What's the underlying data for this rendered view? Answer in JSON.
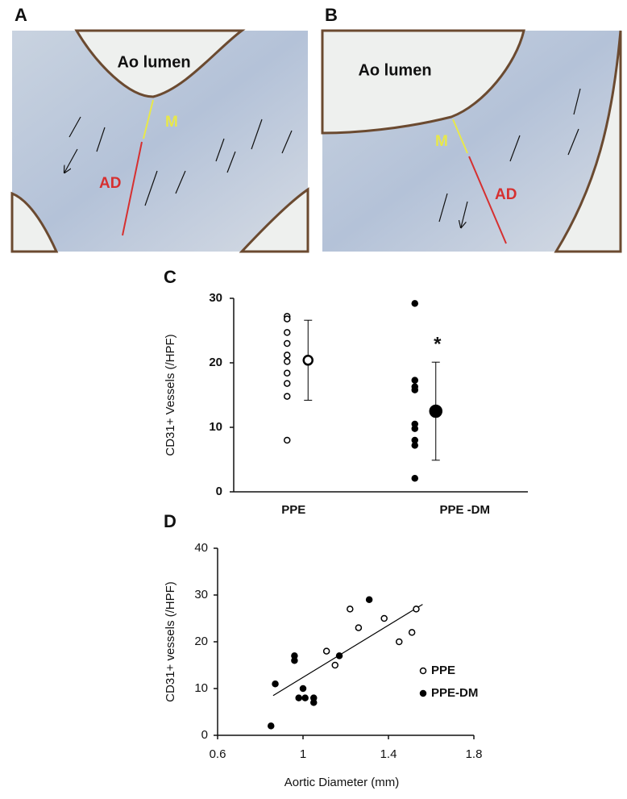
{
  "images": [
    {
      "label": "A",
      "texts": [
        "Ao lumen",
        "M",
        "AD"
      ]
    },
    {
      "label": "B",
      "texts": [
        "Ao lumen",
        "M",
        "AD"
      ]
    }
  ],
  "chart_data": [
    {
      "type": "dot",
      "label": "C",
      "ylabel": "CD31+ Vessels (/HPF)",
      "categories": [
        "PPE",
        "PPE  -DM"
      ],
      "groups": [
        {
          "values": [
            27.2,
            26.8,
            24.7,
            23.0,
            21.2,
            20.2,
            18.4,
            16.8,
            14.8,
            8.0
          ],
          "mean": 20.4,
          "error": 6.2,
          "filled": false
        },
        {
          "values": [
            29.2,
            17.3,
            16.3,
            15.8,
            10.5,
            9.8,
            8.0,
            7.2,
            2.1
          ],
          "mean": 12.5,
          "error": 7.6,
          "filled": true
        }
      ],
      "annotation": "*",
      "ylim": [
        0,
        30
      ],
      "yticks": [
        0,
        10,
        20,
        30
      ],
      "color": "#000000"
    },
    {
      "type": "scatter",
      "label": "D",
      "xlabel": "Aortic Diameter (mm)",
      "ylabel": "CD31+ vessels (/HPF)",
      "series": [
        {
          "name": "PPE",
          "filled": false,
          "x": [
            1.11,
            1.15,
            1.22,
            1.26,
            1.38,
            1.45,
            1.51,
            1.53
          ],
          "values": [
            18,
            15,
            27,
            23,
            25,
            20,
            22,
            27
          ]
        },
        {
          "name": "PPE-DM",
          "filled": true,
          "x": [
            0.85,
            0.87,
            0.96,
            0.96,
            0.98,
            1.0,
            1.01,
            1.05,
            1.05,
            1.17,
            1.31
          ],
          "values": [
            2,
            11,
            17,
            16,
            8,
            10,
            8,
            8,
            7,
            17,
            29
          ]
        }
      ],
      "fit": {
        "x": [
          0.86,
          1.56
        ],
        "y": [
          8.5,
          28
        ]
      },
      "xlim": [
        0.6,
        1.8
      ],
      "xticks": [
        0.6,
        1,
        1.4,
        1.8
      ],
      "ylim": [
        0,
        40
      ],
      "yticks": [
        0,
        10,
        20,
        30,
        40
      ],
      "legend": "right",
      "color": "#000000"
    }
  ]
}
